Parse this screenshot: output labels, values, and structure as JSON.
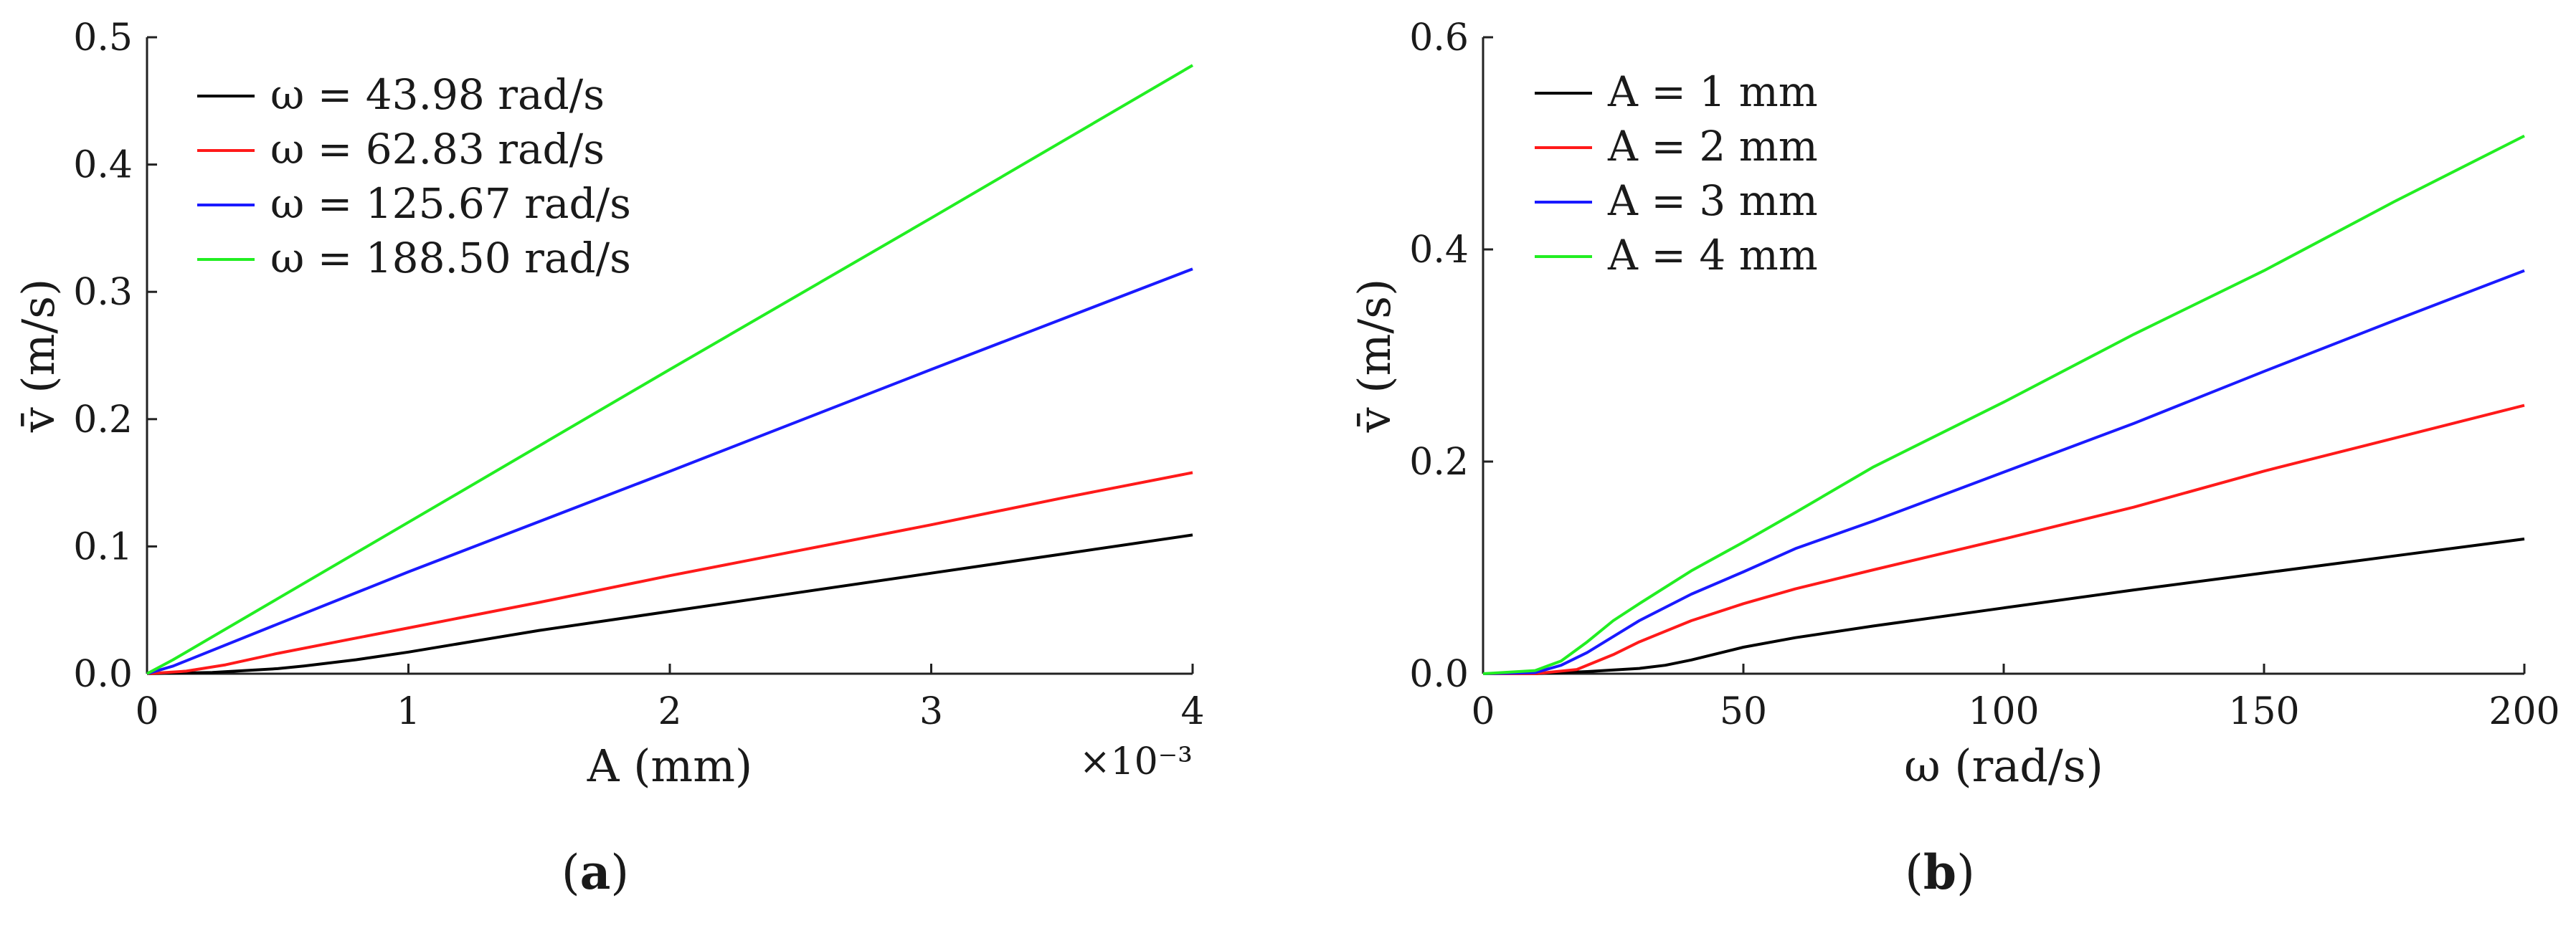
{
  "chart_data": [
    {
      "type": "line",
      "panel": "(a)",
      "panel_letter": "a",
      "xlabel": "A (mm)",
      "ylabel": "v̄ (m/s)",
      "x_multiplier": "×10⁻³",
      "xlim": [
        0,
        4
      ],
      "ylim": [
        0,
        0.5
      ],
      "xticks": [
        "0",
        "1",
        "2",
        "3",
        "4"
      ],
      "yticks": [
        "0.0",
        "0.1",
        "0.2",
        "0.3",
        "0.4",
        "0.5"
      ],
      "legend_position": "top-left",
      "series": [
        {
          "name": "ω = 43.98 rad/s",
          "color": "#000000",
          "x": [
            0,
            0.25,
            0.5,
            0.6,
            0.8,
            1,
            1.5,
            2,
            2.5,
            3,
            3.5,
            4
          ],
          "y": [
            0,
            0.001,
            0.004,
            0.006,
            0.011,
            0.017,
            0.034,
            0.049,
            0.064,
            0.079,
            0.094,
            0.109
          ]
        },
        {
          "name": "ω = 62.83 rad/s",
          "color": "#ff1a1a",
          "x": [
            0,
            0.15,
            0.3,
            0.5,
            0.75,
            1,
            1.5,
            2,
            2.5,
            3,
            3.5,
            4
          ],
          "y": [
            0,
            0.002,
            0.007,
            0.016,
            0.026,
            0.036,
            0.056,
            0.077,
            0.097,
            0.117,
            0.138,
            0.158
          ]
        },
        {
          "name": "ω = 125.67 rad/s",
          "color": "#1a1aff",
          "x": [
            0,
            0.1,
            0.5,
            1,
            2,
            3,
            4
          ],
          "y": [
            0,
            0.006,
            0.039,
            0.08,
            0.159,
            0.239,
            0.318
          ]
        },
        {
          "name": "ω = 188.50 rad/s",
          "color": "#22ee22",
          "x": [
            0,
            0.1,
            0.5,
            1,
            2,
            3,
            4
          ],
          "y": [
            0,
            0.011,
            0.059,
            0.119,
            0.239,
            0.358,
            0.478
          ]
        }
      ]
    },
    {
      "type": "line",
      "panel": "(b)",
      "panel_letter": "b",
      "xlabel": "ω (rad/s)",
      "ylabel": "v̄ (m/s)",
      "xlim": [
        0,
        200
      ],
      "ylim": [
        0,
        0.6
      ],
      "xticks": [
        "0",
        "50",
        "100",
        "150",
        "200"
      ],
      "yticks": [
        "0.0",
        "0.2",
        "0.4",
        "0.6"
      ],
      "legend_position": "top-left",
      "series": [
        {
          "name": "A = 1 mm",
          "color": "#000000",
          "x": [
            0,
            10,
            20,
            30,
            35,
            40,
            50,
            60,
            75,
            100,
            125,
            150,
            175,
            200
          ],
          "y": [
            0,
            0,
            0.002,
            0.005,
            0.008,
            0.013,
            0.025,
            0.034,
            0.045,
            0.062,
            0.079,
            0.095,
            0.111,
            0.127
          ]
        },
        {
          "name": "A = 2 mm",
          "color": "#ff1a1a",
          "x": [
            0,
            10,
            18,
            25,
            30,
            40,
            50,
            60,
            75,
            100,
            125,
            150,
            175,
            200
          ],
          "y": [
            0,
            0,
            0.004,
            0.018,
            0.03,
            0.05,
            0.066,
            0.08,
            0.098,
            0.127,
            0.157,
            0.191,
            0.222,
            0.253
          ]
        },
        {
          "name": "A = 3 mm",
          "color": "#1a1aff",
          "x": [
            0,
            10,
            15,
            20,
            25,
            30,
            40,
            50,
            60,
            75,
            100,
            125,
            150,
            175,
            200
          ],
          "y": [
            0,
            0.001,
            0.008,
            0.02,
            0.035,
            0.05,
            0.075,
            0.096,
            0.118,
            0.144,
            0.19,
            0.236,
            0.285,
            0.333,
            0.38
          ]
        },
        {
          "name": "A = 4 mm",
          "color": "#22ee22",
          "x": [
            0,
            10,
            15,
            20,
            25,
            30,
            40,
            50,
            60,
            75,
            100,
            125,
            150,
            175,
            200
          ],
          "y": [
            0,
            0.003,
            0.012,
            0.03,
            0.05,
            0.066,
            0.097,
            0.124,
            0.152,
            0.195,
            0.256,
            0.32,
            0.38,
            0.445,
            0.507
          ]
        }
      ]
    }
  ]
}
